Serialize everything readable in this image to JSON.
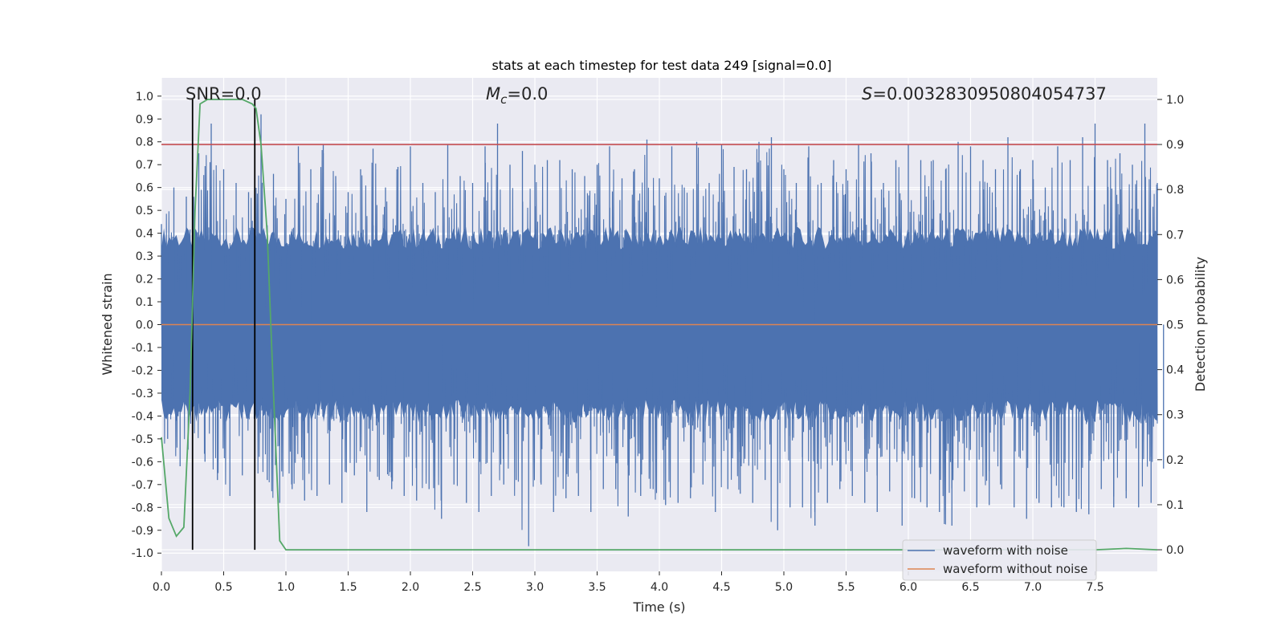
{
  "chart_data": {
    "type": "line",
    "title": "stats at each timestep for test data 249 [signal=0.0]",
    "xlabel": "Time (s)",
    "ylabel": "Whitened strain",
    "y2label": "Detection probability",
    "xlim": [
      0.0,
      8.0
    ],
    "ylim": [
      -1.08,
      1.08
    ],
    "y2lim": [
      -0.048,
      1.048
    ],
    "x_ticks": [
      "0.0",
      "0.5",
      "1.0",
      "1.5",
      "2.0",
      "2.5",
      "3.0",
      "3.5",
      "4.0",
      "4.5",
      "5.0",
      "5.5",
      "6.0",
      "6.5",
      "7.0",
      "7.5"
    ],
    "y_ticks": [
      "1.0",
      "0.9",
      "0.8",
      "0.7",
      "0.6",
      "0.5",
      "0.4",
      "0.3",
      "0.2",
      "0.1",
      "0.0",
      "-0.1",
      "-0.2",
      "-0.3",
      "-0.4",
      "-0.5",
      "-0.6",
      "-0.7",
      "-0.8",
      "-0.9",
      "-1.0"
    ],
    "y2_ticks": [
      "1.0",
      "0.9",
      "0.8",
      "0.7",
      "0.6",
      "0.5",
      "0.4",
      "0.3",
      "0.2",
      "0.1",
      "0.0"
    ],
    "annotations": {
      "snr": "SNR=0.0",
      "mc_symbol": "M",
      "mc_sub": "c",
      "mc_value": "=0.0",
      "s_symbol": "S",
      "s_value": "=0.003283095080405473‌7"
    },
    "threshold_line": {
      "y2": 0.9,
      "color": "#c44e52"
    },
    "vertical_markers_x": [
      0.25,
      0.75
    ],
    "series": [
      {
        "name": "waveform with noise",
        "color": "#4c72b0",
        "axis": "left",
        "envelope_upper": [
          0.44,
          0.6,
          0.56,
          0.75,
          0.88,
          0.68,
          0.62,
          0.58,
          0.92,
          0.66,
          0.55,
          0.78,
          0.68,
          0.79,
          0.65,
          0.58,
          0.68,
          0.77,
          0.6,
          0.69,
          0.78,
          0.62,
          0.58,
          0.79,
          0.65,
          0.62,
          0.78,
          0.88,
          0.7,
          0.76,
          0.7,
          0.72,
          0.72,
          0.68,
          0.65,
          0.7,
          0.78,
          0.64,
          0.68,
          0.81,
          0.64,
          0.78,
          0.6,
          0.8,
          0.62,
          0.79,
          0.69,
          0.68,
          0.8,
          0.82,
          0.68,
          0.62,
          0.78,
          0.62,
          0.72,
          0.68,
          0.79,
          0.75,
          0.62,
          0.72,
          0.79,
          0.72,
          0.72,
          0.68,
          0.8,
          0.78,
          0.72,
          0.68,
          0.82,
          0.68,
          0.72,
          0.6,
          0.78,
          0.72,
          0.82,
          0.88,
          0.72,
          0.75,
          0.7,
          0.88,
          0.62
        ],
        "envelope_lower": [
          -0.5,
          -0.62,
          -0.6,
          -0.6,
          -0.68,
          -0.75,
          -0.66,
          -0.7,
          -0.68,
          -0.78,
          -0.72,
          -0.77,
          -0.75,
          -0.7,
          -0.78,
          -0.66,
          -0.82,
          -0.68,
          -0.72,
          -0.75,
          -0.77,
          -0.72,
          -0.85,
          -0.7,
          -0.78,
          -0.82,
          -0.75,
          -0.7,
          -0.68,
          -0.97,
          -0.7,
          -0.82,
          -0.76,
          -0.75,
          -0.82,
          -0.72,
          -0.72,
          -0.84,
          -0.75,
          -0.72,
          -0.79,
          -0.78,
          -0.76,
          -0.7,
          -0.82,
          -0.72,
          -0.74,
          -0.78,
          -0.68,
          -0.9,
          -0.8,
          -0.8,
          -0.88,
          -0.78,
          -0.72,
          -0.75,
          -0.78,
          -0.82,
          -0.73,
          -0.88,
          -0.76,
          -0.8,
          -0.82,
          -0.88,
          -0.73,
          -0.8,
          -0.79,
          -0.72,
          -0.8,
          -0.85,
          -0.78,
          -0.8,
          -0.8,
          -0.82,
          -0.83,
          -0.72,
          -0.8,
          -0.76,
          -0.8,
          -0.78,
          -0.63
        ]
      },
      {
        "name": "waveform without noise",
        "color": "#dd8452",
        "axis": "left",
        "x": [
          0.0,
          8.0
        ],
        "y": [
          0.0,
          0.0
        ]
      },
      {
        "name": "",
        "color": "#55a868",
        "axis": "right",
        "x": [
          0.0,
          0.06,
          0.12,
          0.18,
          0.23,
          0.27,
          0.31,
          0.37,
          0.45,
          0.55,
          0.65,
          0.73,
          0.76,
          0.8,
          0.85,
          0.9,
          0.95,
          1.0,
          1.2,
          1.5,
          2.0,
          2.5,
          3.0,
          3.5,
          4.0,
          4.5,
          5.0,
          5.5,
          6.0,
          6.5,
          7.0,
          7.5,
          7.75,
          8.0
        ],
        "y": [
          0.25,
          0.07,
          0.03,
          0.05,
          0.35,
          0.75,
          0.99,
          1.0,
          1.0,
          1.0,
          1.0,
          0.99,
          0.98,
          0.9,
          0.7,
          0.35,
          0.02,
          0.0,
          0.0,
          0.0,
          0.0,
          0.0,
          0.0,
          0.0,
          0.0,
          0.0,
          0.0,
          0.0,
          0.0,
          0.0,
          0.0,
          0.0,
          0.003,
          0.0
        ]
      }
    ],
    "legend": {
      "placement": "lower-right",
      "entries": [
        {
          "label": "waveform with noise",
          "color": "#4c72b0"
        },
        {
          "label": "waveform without noise",
          "color": "#dd8452"
        }
      ]
    },
    "background": "#eaeaf2",
    "grid": true
  }
}
